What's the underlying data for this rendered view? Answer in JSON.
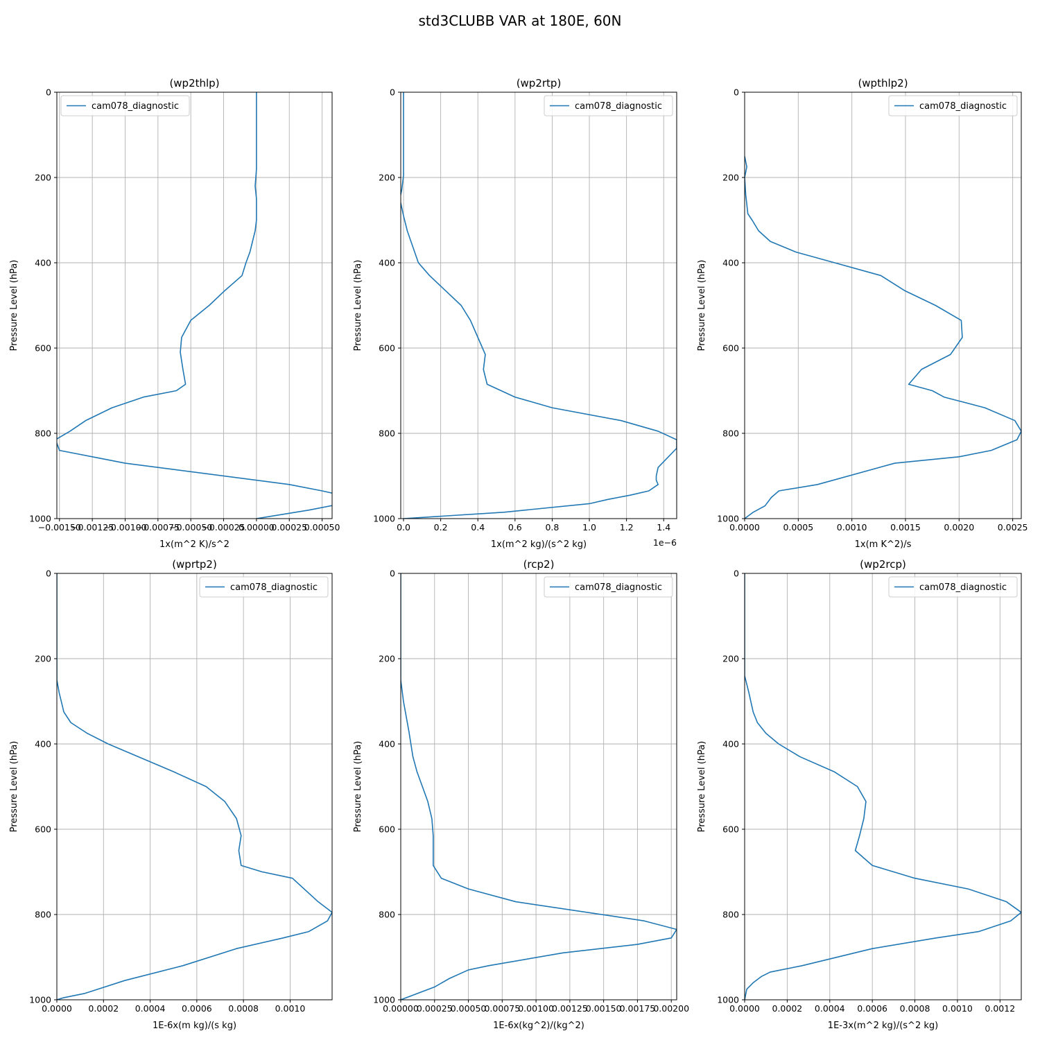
{
  "title": "std3CLUBB VAR at 180E, 60N",
  "series_color": "#1f77b4",
  "grid_color": "#b0b0b0",
  "chart_data": [
    {
      "type": "line",
      "title": "(wp2thlp)",
      "xlabel": "1x(m^2 K)/s^2",
      "ylabel": "Pressure Level (hPa)",
      "xlim": [
        -0.00152,
        0.000576
      ],
      "ylim": [
        1000,
        0
      ],
      "xticks": [
        -0.0015,
        -0.00125,
        -0.001,
        -0.00075,
        -0.0005,
        -0.00025,
        0.0,
        0.00025,
        0.0005
      ],
      "xtick_labels": [
        "−0.00150",
        "−0.00125",
        "−0.00100",
        "−0.00075",
        "−0.00050",
        "−0.00025",
        "0.00000",
        "0.00025",
        "0.00050"
      ],
      "yticks": [
        0,
        200,
        400,
        600,
        800,
        1000
      ],
      "ytick_labels": [
        "0",
        "200",
        "400",
        "600",
        "800",
        "1000"
      ],
      "offset_text": "",
      "grid": true,
      "legend_position": "upper-left",
      "series": [
        {
          "name": "cam078_diagnostic",
          "x": [
            0.0,
            0.0,
            0.0,
            -1e-05,
            0.0,
            0.0,
            -1e-05,
            -3e-05,
            -5e-05,
            -8e-05,
            -0.00011,
            -0.00024,
            -0.00036,
            -0.0005,
            -0.00057,
            -0.00058,
            -0.00056,
            -0.00054,
            -0.00061,
            -0.00086,
            -0.0011,
            -0.0013,
            -0.00142,
            -0.00153,
            -0.0015,
            -0.00125,
            -0.001,
            0.00025,
            0.0005,
            0.00065,
            0.0007,
            0.00065,
            0.0004,
            0.0
          ],
          "y": [
            0,
            150,
            180,
            220,
            250,
            300,
            325,
            350,
            375,
            400,
            430,
            465,
            500,
            535,
            575,
            610,
            650,
            685,
            700,
            715,
            740,
            770,
            795,
            815,
            840,
            855,
            870,
            920,
            935,
            945,
            955,
            965,
            980,
            1000
          ]
        }
      ]
    },
    {
      "type": "line",
      "title": "(wp2rtp)",
      "xlabel": "1x(m^2 kg)/(s^2 kg)",
      "ylabel": "Pressure Level (hPa)",
      "xlim": [
        -0.015,
        1.47
      ],
      "ylim": [
        1000,
        0
      ],
      "xticks": [
        0.0,
        0.2,
        0.4,
        0.6,
        0.8,
        1.0,
        1.2,
        1.4
      ],
      "xtick_labels": [
        "0.0",
        "0.2",
        "0.4",
        "0.6",
        "0.8",
        "1.0",
        "1.2",
        "1.4"
      ],
      "yticks": [
        0,
        200,
        400,
        600,
        800,
        1000
      ],
      "ytick_labels": [
        "0",
        "200",
        "400",
        "600",
        "800",
        "1000"
      ],
      "offset_text": "1e−6",
      "grid": true,
      "legend_position": "upper-right",
      "series": [
        {
          "name": "cam078_diagnostic",
          "x": [
            0.0,
            0.0,
            0.0,
            -0.01,
            -0.02,
            0.0,
            0.02,
            0.04,
            0.06,
            0.08,
            0.14,
            0.31,
            0.36,
            0.4,
            0.44,
            0.43,
            0.45,
            0.6,
            0.8,
            1.17,
            1.37,
            1.47,
            1.47,
            1.37,
            1.36,
            1.36,
            1.37,
            1.32,
            1.22,
            1.1,
            1.0,
            0.54,
            0.0
          ],
          "y": [
            0,
            150,
            195,
            230,
            250,
            290,
            325,
            350,
            375,
            400,
            430,
            500,
            535,
            575,
            615,
            650,
            685,
            715,
            740,
            770,
            795,
            815,
            835,
            880,
            900,
            910,
            920,
            935,
            945,
            955,
            965,
            985,
            1000
          ]
        }
      ]
    },
    {
      "type": "line",
      "title": "(wpthlp2)",
      "xlabel": "1x(m K^2)/s",
      "ylabel": "Pressure Level (hPa)",
      "xlim": [
        0.0,
        0.00258
      ],
      "ylim": [
        1000,
        0
      ],
      "xticks": [
        0.0,
        0.0005,
        0.001,
        0.0015,
        0.002,
        0.0025
      ],
      "xtick_labels": [
        "0.0000",
        "0.0005",
        "0.0010",
        "0.0015",
        "0.0020",
        "0.0025"
      ],
      "yticks": [
        0,
        200,
        400,
        600,
        800,
        1000
      ],
      "ytick_labels": [
        "0",
        "200",
        "400",
        "600",
        "800",
        "1000"
      ],
      "offset_text": "",
      "grid": true,
      "legend_position": "upper-right",
      "series": [
        {
          "name": "cam078_diagnostic",
          "x": [
            0.0,
            2e-05,
            0.0,
            1e-05,
            3e-05,
            7e-05,
            0.00013,
            0.00024,
            0.00048,
            0.00084,
            0.00127,
            0.00149,
            0.00178,
            0.00202,
            0.00203,
            0.00192,
            0.00165,
            0.00153,
            0.00175,
            0.00186,
            0.00224,
            0.00252,
            0.00258,
            0.00254,
            0.0023,
            0.002,
            0.0014,
            0.00068,
            0.00032,
            0.00025,
            0.00019,
            8e-05,
            0.0
          ],
          "y": [
            150,
            175,
            200,
            240,
            285,
            300,
            325,
            350,
            375,
            400,
            430,
            465,
            500,
            535,
            575,
            615,
            650,
            685,
            700,
            715,
            740,
            770,
            795,
            815,
            840,
            855,
            870,
            920,
            935,
            950,
            970,
            985,
            1000
          ]
        }
      ]
    },
    {
      "type": "line",
      "title": "(wprtp2)",
      "xlabel": "1E-6x(m kg)/(s kg)",
      "ylabel": "Pressure Level (hPa)",
      "xlim": [
        0.0,
        0.00118
      ],
      "ylim": [
        1000,
        0
      ],
      "xticks": [
        0.0,
        0.0002,
        0.0004,
        0.0006,
        0.0008,
        0.001
      ],
      "xtick_labels": [
        "0.0000",
        "0.0002",
        "0.0004",
        "0.0006",
        "0.0008",
        "0.0010"
      ],
      "yticks": [
        0,
        200,
        400,
        600,
        800,
        1000
      ],
      "ytick_labels": [
        "0",
        "200",
        "400",
        "600",
        "800",
        "1000"
      ],
      "offset_text": "",
      "grid": true,
      "legend_position": "upper-right",
      "series": [
        {
          "name": "cam078_diagnostic",
          "x": [
            0.0,
            0.0,
            0.0,
            1e-05,
            3e-05,
            6e-05,
            0.00013,
            0.00022,
            0.0005,
            0.00064,
            0.00072,
            0.00077,
            0.00079,
            0.00078,
            0.00079,
            0.00088,
            0.00101,
            0.00112,
            0.00118,
            0.00116,
            0.00108,
            0.00097,
            0.00077,
            0.00054,
            0.00029,
            0.00012,
            3e-05,
            0.0
          ],
          "y": [
            0,
            200,
            250,
            280,
            325,
            350,
            375,
            400,
            465,
            500,
            535,
            575,
            615,
            650,
            685,
            700,
            715,
            770,
            795,
            815,
            840,
            855,
            880,
            920,
            955,
            985,
            995,
            1000
          ]
        }
      ]
    },
    {
      "type": "line",
      "title": "(rcp2)",
      "xlabel": "1E-6x(kg^2)/(kg^2)",
      "ylabel": "Pressure Level (hPa)",
      "xlim": [
        0.0,
        0.00204
      ],
      "ylim": [
        1000,
        0
      ],
      "xticks": [
        0.0,
        0.00025,
        0.0005,
        0.00075,
        0.001,
        0.00125,
        0.0015,
        0.00175,
        0.002
      ],
      "xtick_labels": [
        "0.00000",
        "0.00025",
        "0.00050",
        "0.00075",
        "0.00100",
        "0.00125",
        "0.00150",
        "0.00175",
        "0.00200"
      ],
      "yticks": [
        0,
        200,
        400,
        600,
        800,
        1000
      ],
      "ytick_labels": [
        "0",
        "200",
        "400",
        "600",
        "800",
        "1000"
      ],
      "offset_text": "",
      "grid": true,
      "legend_position": "upper-right",
      "series": [
        {
          "name": "cam078_diagnostic",
          "x": [
            0.0,
            0.0,
            2e-05,
            6e-05,
            9e-05,
            0.00012,
            0.00016,
            0.0002,
            0.00023,
            0.00024,
            0.00024,
            0.00024,
            0.0003,
            0.0005,
            0.00085,
            0.0018,
            0.00204,
            0.002,
            0.00175,
            0.0012,
            0.00065,
            0.0005,
            0.00036,
            0.00025,
            0.0
          ],
          "y": [
            0,
            250,
            300,
            370,
            430,
            465,
            500,
            535,
            575,
            615,
            650,
            685,
            715,
            740,
            770,
            815,
            835,
            855,
            870,
            890,
            920,
            930,
            950,
            970,
            1000
          ]
        }
      ]
    },
    {
      "type": "line",
      "title": "(wp2rcp)",
      "xlabel": "1E-3x(m^2 kg)/(s^2 kg)",
      "ylabel": "Pressure Level (hPa)",
      "xlim": [
        0.0,
        0.0013
      ],
      "ylim": [
        1000,
        0
      ],
      "xticks": [
        0.0,
        0.0002,
        0.0004,
        0.0006,
        0.0008,
        0.001,
        0.0012
      ],
      "xtick_labels": [
        "0.0000",
        "0.0002",
        "0.0004",
        "0.0006",
        "0.0008",
        "0.0010",
        "0.0012"
      ],
      "yticks": [
        0,
        200,
        400,
        600,
        800,
        1000
      ],
      "ytick_labels": [
        "0",
        "200",
        "400",
        "600",
        "800",
        "1000"
      ],
      "offset_text": "",
      "grid": true,
      "legend_position": "upper-right",
      "series": [
        {
          "name": "cam078_diagnostic",
          "x": [
            0.0,
            0.0,
            2e-05,
            4e-05,
            6e-05,
            0.0001,
            0.00016,
            0.00026,
            0.00042,
            0.00053,
            0.00057,
            0.00056,
            0.00054,
            0.00052,
            0.0006,
            0.0008,
            0.00105,
            0.00123,
            0.0013,
            0.00125,
            0.0011,
            0.0009,
            0.0006,
            0.00027,
            0.00012,
            8e-05,
            4e-05,
            1e-05,
            0.0
          ],
          "y": [
            0,
            240,
            280,
            325,
            350,
            375,
            400,
            430,
            465,
            500,
            535,
            575,
            615,
            650,
            685,
            715,
            740,
            770,
            795,
            815,
            840,
            855,
            880,
            920,
            935,
            945,
            960,
            975,
            1000
          ]
        }
      ]
    }
  ]
}
